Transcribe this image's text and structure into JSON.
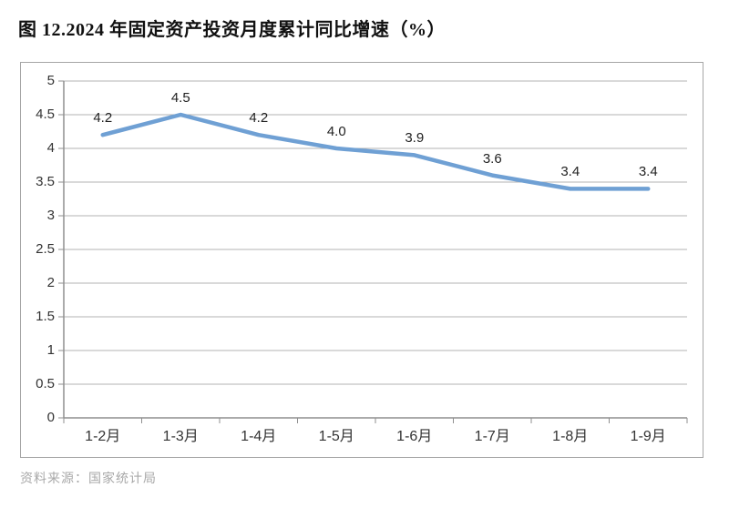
{
  "title": "图 12.2024 年固定资产投资月度累计同比增速（%）",
  "source": "资料来源：国家统计局",
  "colors": {
    "line": "#6FA0D4",
    "grid": "#b3b3b3",
    "axis": "#8f8f8f",
    "panel_border": "#a6a6a6",
    "tick_text": "#333333",
    "data_label_text": "#222222",
    "footer_text": "#a8a8a8"
  },
  "chart_data": {
    "type": "line",
    "title": "图 12.2024 年固定资产投资月度累计同比增速（%）",
    "categories": [
      "1-2月",
      "1-3月",
      "1-4月",
      "1-5月",
      "1-6月",
      "1-7月",
      "1-8月",
      "1-9月"
    ],
    "values": [
      4.2,
      4.5,
      4.2,
      4.0,
      3.9,
      3.6,
      3.4,
      3.4
    ],
    "data_labels": [
      "4.2",
      "4.5",
      "4.2",
      "4.0",
      "3.9",
      "3.6",
      "3.4",
      "3.4"
    ],
    "series_name": "",
    "xlabel": "",
    "ylabel": "",
    "ylim": [
      0,
      5
    ],
    "ytick_step": 0.5,
    "yticks": [
      "0",
      "0.5",
      "1",
      "1.5",
      "2",
      "2.5",
      "3",
      "3.5",
      "4",
      "4.5",
      "5"
    ],
    "grid": true,
    "legend": "none",
    "source_note": "资料来源：国家统计局"
  }
}
